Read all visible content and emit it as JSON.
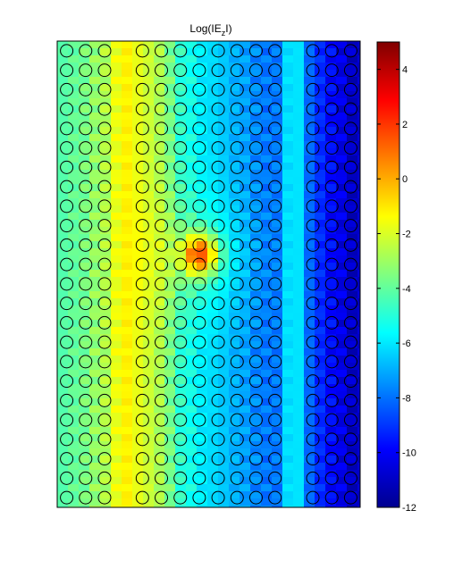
{
  "chart_data": {
    "type": "heatmap",
    "title": {
      "prefix": "Log(IE",
      "subscript": "z",
      "suffix": "I)"
    },
    "xlabel": "",
    "ylabel": "",
    "colorbar": {
      "colormap": "jet",
      "range": [
        -12,
        5
      ],
      "ticks": [
        4,
        2,
        0,
        -2,
        -4,
        -6,
        -8,
        -10,
        -12
      ],
      "tick_labels": [
        "4",
        "2",
        "0",
        "-2",
        "-4",
        "-6",
        "-8",
        "-10",
        "-12"
      ]
    },
    "grid": false,
    "lattice": {
      "marker": "circle",
      "marker_color": "#000000",
      "rows": 24,
      "columns_occupied": [
        1,
        2,
        3,
        5,
        6,
        7,
        8,
        9,
        10,
        11,
        12,
        14,
        15,
        16
      ],
      "columns_empty": [
        4,
        13
      ]
    },
    "column_profile": {
      "columns": [
        1,
        2,
        3,
        4,
        5,
        6,
        7,
        8,
        9,
        10,
        11,
        12,
        13,
        14,
        15,
        16
      ],
      "log_field_values": [
        -4,
        -3.4,
        -2.6,
        -0.8,
        -1.8,
        -2.6,
        -4.6,
        -5.6,
        -6.2,
        -6.8,
        -7.4,
        -8,
        -5,
        -8.6,
        -9.6,
        -10.6
      ]
    },
    "hotspot": {
      "row": 11.5,
      "column": 8,
      "peak_value": 0.8
    }
  }
}
